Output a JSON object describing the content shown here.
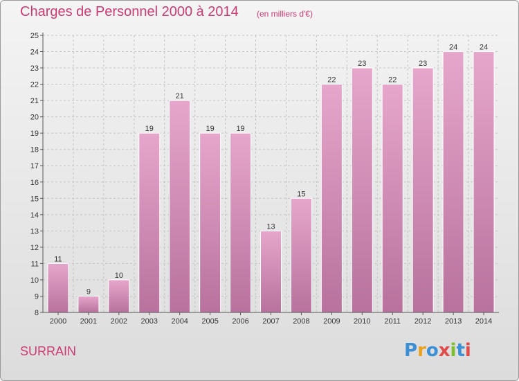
{
  "title": "Charges de Personnel 2000 à 2014",
  "subtitle": "(en milliers d'€)",
  "commune": "SURRAIN",
  "brand": {
    "letters": [
      "P",
      "r",
      "o",
      "x",
      "i",
      "t",
      "i"
    ],
    "colors": [
      "#3a8fd6",
      "#e8a21f",
      "#3a8fd6",
      "#e04a4a",
      "#7bbf2e",
      "#3a8fd6",
      "#e04a4a"
    ]
  },
  "colors": {
    "bar_top": "#e6a6cb",
    "bar_bottom": "#b8729d",
    "title": "#cc3b73",
    "axis": "#555555"
  },
  "chart_data": {
    "type": "bar",
    "categories": [
      "2000",
      "2001",
      "2002",
      "2003",
      "2004",
      "2005",
      "2006",
      "2007",
      "2008",
      "2009",
      "2010",
      "2011",
      "2012",
      "2013",
      "2014"
    ],
    "values": [
      11,
      9,
      10,
      19,
      21,
      19,
      19,
      13,
      15,
      22,
      23,
      22,
      23,
      24,
      24
    ],
    "title": "Charges de Personnel 2000 à 2014",
    "subtitle": "(en milliers d'€)",
    "xlabel": "",
    "ylabel": "",
    "ylim": [
      8,
      25
    ],
    "yticks": [
      "8",
      "9",
      "10",
      "11",
      "12",
      "13",
      "14",
      "15",
      "16",
      "17",
      "18",
      "19",
      "20",
      "21",
      "22",
      "23",
      "24",
      "25"
    ],
    "grid": true
  }
}
